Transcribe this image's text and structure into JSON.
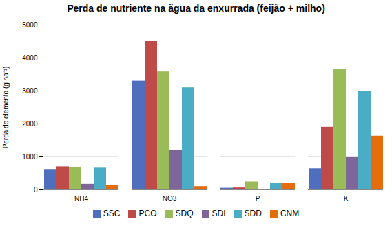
{
  "chart_data": {
    "type": "bar",
    "title": "Perda de nutriente na ãgua da enxurrada (feijão + milho)",
    "y_label": "Perda do elemento (g ha⁻¹)",
    "categories": [
      "NH4",
      "NO3",
      "P",
      "K"
    ],
    "series": [
      {
        "name": "SSC",
        "color": "#4F6EBD",
        "values": [
          620,
          3300,
          50,
          640
        ]
      },
      {
        "name": "PCO",
        "color": "#BE4B48",
        "values": [
          700,
          4500,
          60,
          1900
        ]
      },
      {
        "name": "SDQ",
        "color": "#9BBB59",
        "values": [
          670,
          3580,
          240,
          3650
        ]
      },
      {
        "name": "SDI",
        "color": "#7F6699",
        "values": [
          170,
          1200,
          0,
          980
        ]
      },
      {
        "name": "SDD",
        "color": "#4BACC6",
        "values": [
          660,
          3100,
          210,
          3000
        ]
      },
      {
        "name": "CNM",
        "color": "#E46C0A",
        "values": [
          130,
          100,
          190,
          1630
        ]
      }
    ],
    "ylim": [
      0,
      5000
    ],
    "yticks": [
      0,
      1000,
      2000,
      3000,
      4000,
      5000
    ],
    "grid": true,
    "legend": "bottom"
  }
}
